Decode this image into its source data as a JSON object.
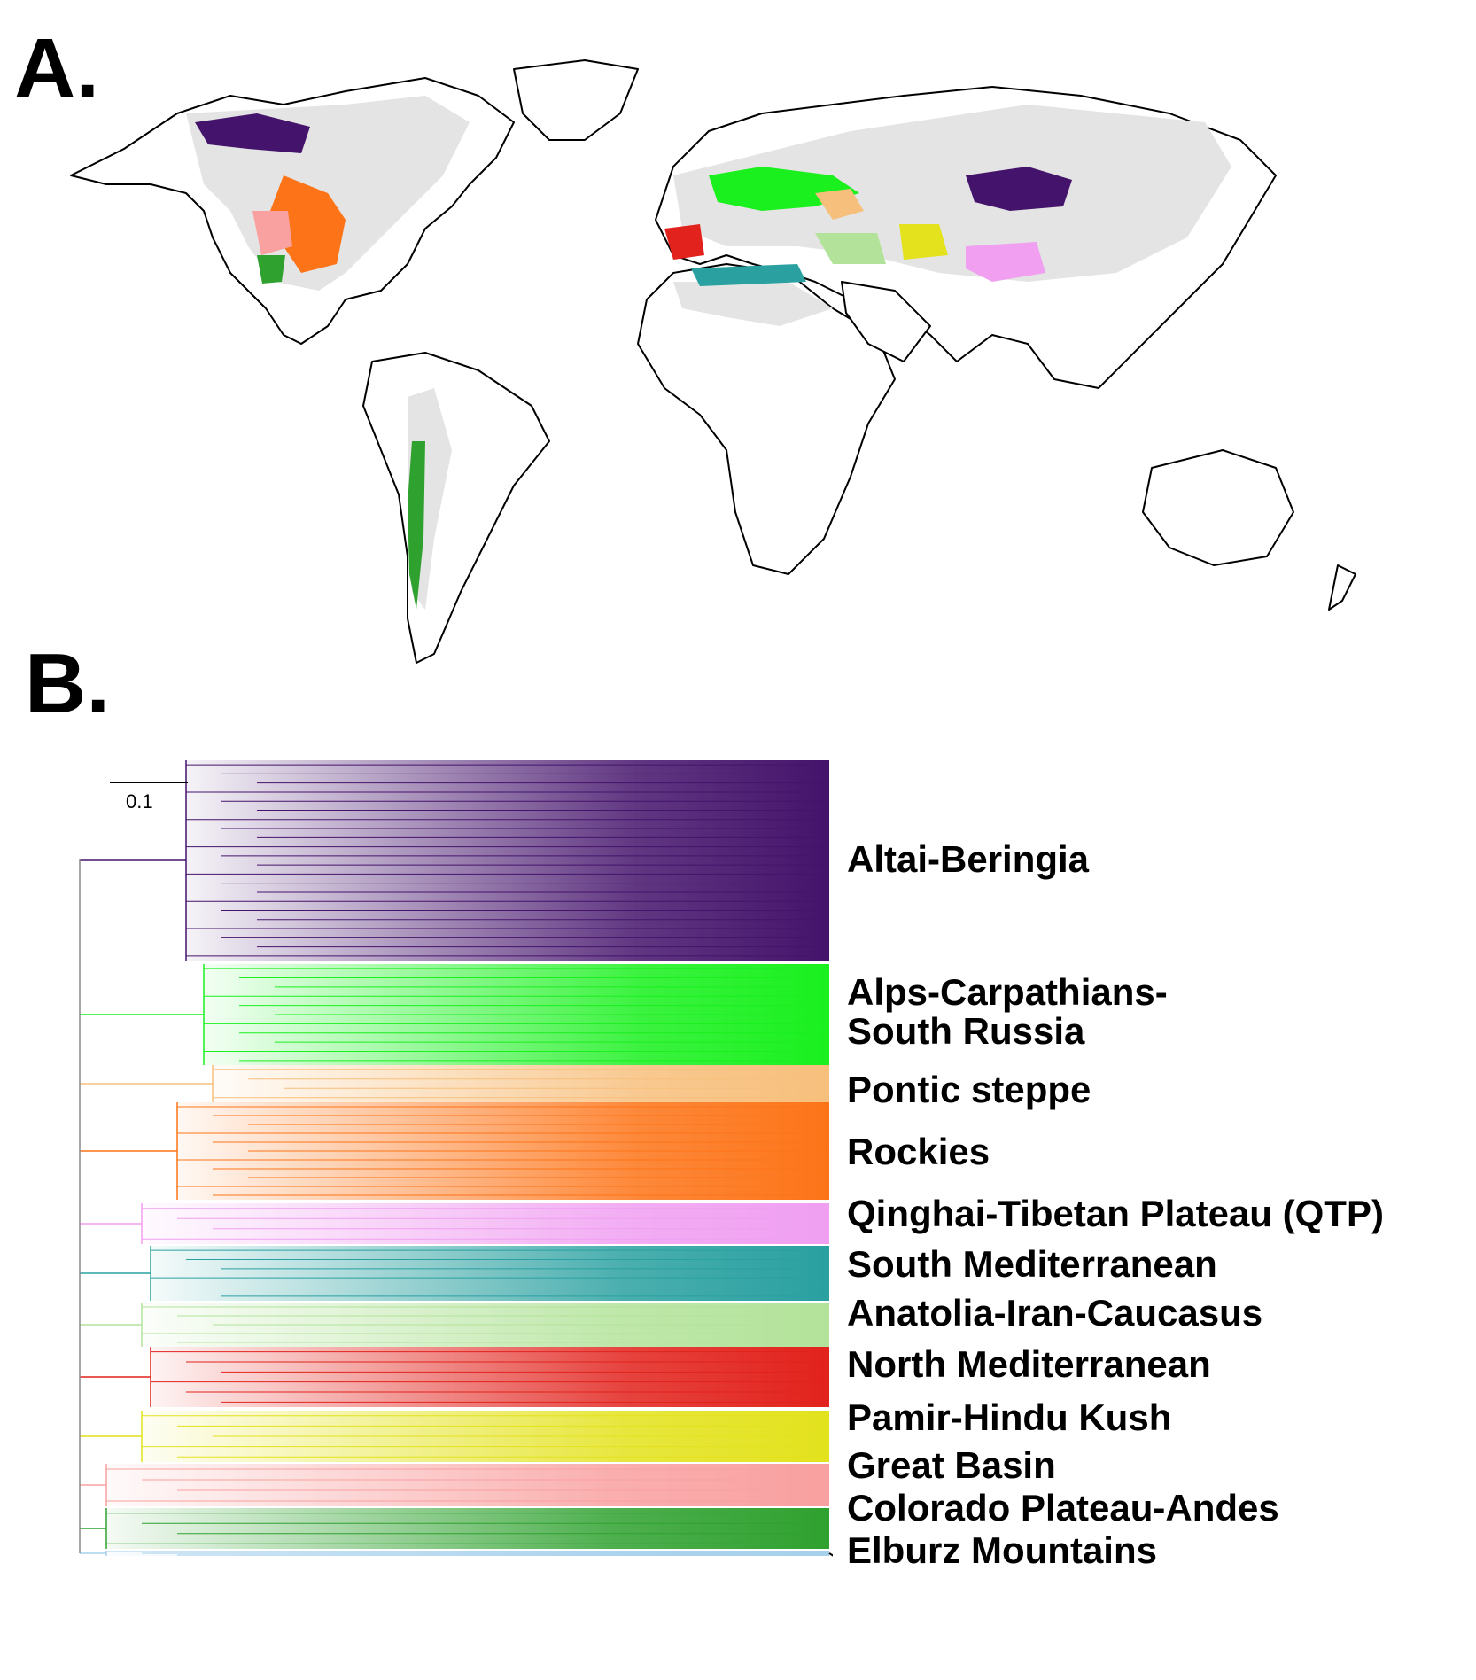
{
  "panels": {
    "a": "A.",
    "b": "B."
  },
  "scale_bar_label": "0.1",
  "colors": {
    "background_land": "#e4e4e4",
    "outline": "#000000",
    "altai_beringia": "#44136b",
    "alps_carpathians": "#19f01e",
    "pontic_steppe": "#f7bf7c",
    "rockies": "#fd7418",
    "qtp": "#f09ff1",
    "south_med": "#2aa0a0",
    "anatolia": "#b3e39a",
    "north_med": "#e2221c",
    "pamir": "#e3e21d",
    "great_basin": "#f9a0a0",
    "colorado_andes": "#2fa12f",
    "elburz": "#a6d0ec"
  },
  "clades": [
    {
      "id": "altai",
      "lines": [
        "Altai-Beringia"
      ],
      "color": "#44136b"
    },
    {
      "id": "alps",
      "lines": [
        "Alps-Carpathians-",
        "South Russia"
      ],
      "color": "#19f01e"
    },
    {
      "id": "pontic",
      "lines": [
        "Pontic steppe"
      ],
      "color": "#f7bf7c"
    },
    {
      "id": "rockies",
      "lines": [
        "Rockies"
      ],
      "color": "#fd7418"
    },
    {
      "id": "qtp",
      "lines": [
        "Qinghai-Tibetan Plateau (QTP)"
      ],
      "color": "#f09ff1"
    },
    {
      "id": "smed",
      "lines": [
        "South Mediterranean"
      ],
      "color": "#2aa0a0"
    },
    {
      "id": "anatolia",
      "lines": [
        "Anatolia-Iran-Caucasus"
      ],
      "color": "#b3e39a"
    },
    {
      "id": "nmed",
      "lines": [
        "North Mediterranean"
      ],
      "color": "#e2221c"
    },
    {
      "id": "pamir",
      "lines": [
        "Pamir-Hindu Kush"
      ],
      "color": "#e3e21d"
    },
    {
      "id": "basin",
      "lines": [
        "Great Basin"
      ],
      "color": "#f9a0a0"
    },
    {
      "id": "colorado",
      "lines": [
        "Colorado Plateau-Andes"
      ],
      "color": "#2fa12f"
    },
    {
      "id": "elburz",
      "lines": [
        "Elburz Mountains"
      ],
      "color": "#a6d0ec"
    }
  ]
}
